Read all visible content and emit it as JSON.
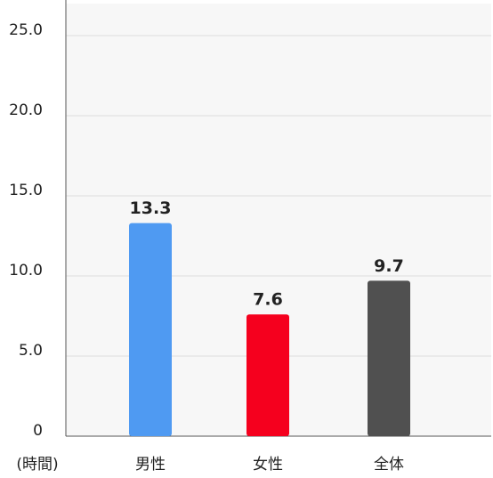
{
  "chart_data": {
    "type": "bar",
    "ylabel": "(時間)",
    "categories": [
      "男性",
      "女性",
      "全体"
    ],
    "values": [
      13.3,
      7.6,
      9.7
    ],
    "colors": [
      "#4f9af2",
      "#f5001e",
      "#505050"
    ],
    "ylim": [
      0,
      27
    ],
    "yticks": [
      0,
      {
        "value": 5,
        "label": "5.0"
      },
      {
        "value": 10,
        "label": "10.0"
      },
      {
        "value": 15,
        "label": "15.0"
      },
      {
        "value": 20,
        "label": "20.0"
      },
      {
        "value": 25,
        "label": "25.0"
      }
    ],
    "grid": true
  }
}
